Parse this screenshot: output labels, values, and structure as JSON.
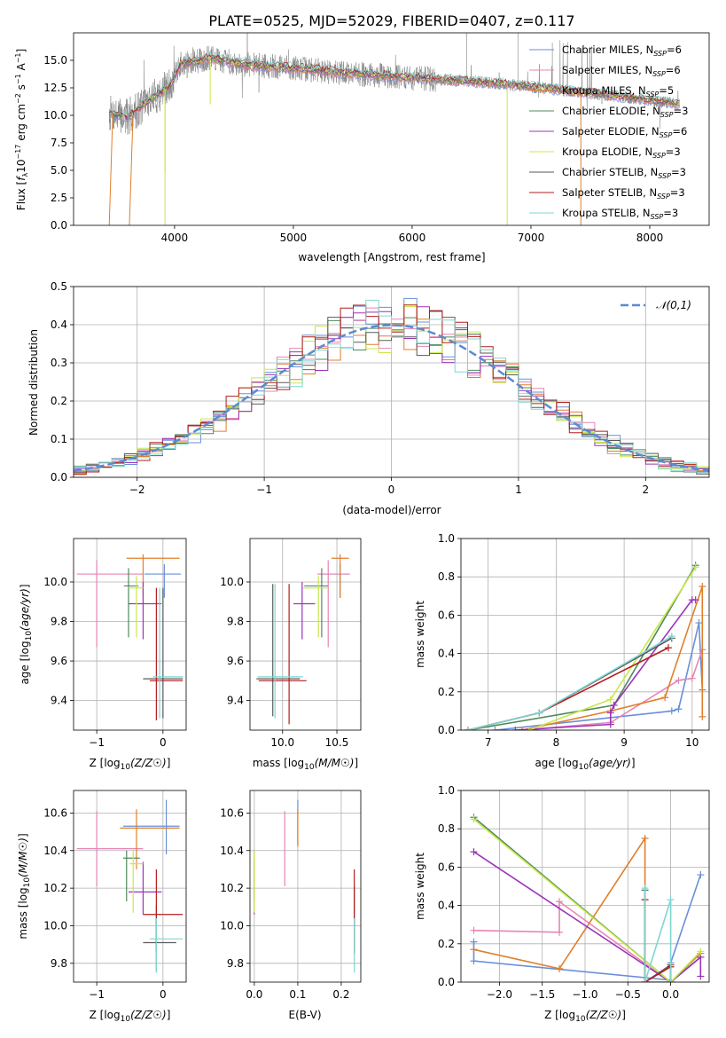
{
  "figure_title": "PLATE=0525, MJD=52029, FIBERID=0407, z=0.117",
  "series_colors": {
    "chabrier_miles": "#6a8fd8",
    "salpeter_miles": "#e884b4",
    "kroupa_miles": "#e07f2a",
    "chabrier_elodie": "#4f8a5b",
    "salpeter_elodie": "#9b34b8",
    "kroupa_elodie": "#c8e84a",
    "chabrier_stelib": "#5a5a5a",
    "salpeter_stelib": "#b31d1d",
    "kroupa_stelib": "#7fd6d2"
  },
  "legend_entries": [
    {
      "key": "chabrier_miles",
      "imf": "Chabrier",
      "lib": "MILES",
      "nssp": "6"
    },
    {
      "key": "salpeter_miles",
      "imf": "Salpeter",
      "lib": "MILES",
      "nssp": "6"
    },
    {
      "key": "kroupa_miles",
      "imf": "Kroupa",
      "lib": "MILES",
      "nssp": "5"
    },
    {
      "key": "chabrier_elodie",
      "imf": "Chabrier",
      "lib": "ELODIE",
      "nssp": "3"
    },
    {
      "key": "salpeter_elodie",
      "imf": "Salpeter",
      "lib": "ELODIE",
      "nssp": "6"
    },
    {
      "key": "kroupa_elodie",
      "imf": "Kroupa",
      "lib": "ELODIE",
      "nssp": "3"
    },
    {
      "key": "chabrier_stelib",
      "imf": "Chabrier",
      "lib": "STELIB",
      "nssp": "3"
    },
    {
      "key": "salpeter_stelib",
      "imf": "Salpeter",
      "lib": "STELIB",
      "nssp": "3"
    },
    {
      "key": "kroupa_stelib",
      "imf": "Kroupa",
      "lib": "STELIB",
      "nssp": "3"
    }
  ],
  "chart_data": [
    {
      "id": "spectrum",
      "type": "line",
      "xlabel": "wavelength [Angstrom, rest frame]",
      "ylabel": "Flux [f_λ 10^-17 erg cm^-2 s^-1 A^-1]",
      "xlim": [
        3150,
        8500
      ],
      "ylim": [
        0,
        17.5
      ],
      "xticks": [
        4000,
        5000,
        6000,
        7000,
        8000
      ],
      "yticks": [
        0.0,
        2.5,
        5.0,
        7.5,
        10.0,
        12.5,
        15.0
      ],
      "data_range": [
        3450,
        8250
      ],
      "trend": [
        [
          3450,
          10.2
        ],
        [
          3600,
          9.8
        ],
        [
          3800,
          11.5
        ],
        [
          3950,
          12.5
        ],
        [
          4050,
          14.6
        ],
        [
          4300,
          15.2
        ],
        [
          4600,
          14.6
        ],
        [
          5000,
          14.3
        ],
        [
          5500,
          13.8
        ],
        [
          6000,
          13.4
        ],
        [
          6500,
          13.1
        ],
        [
          7000,
          12.6
        ],
        [
          7500,
          12.0
        ],
        [
          8000,
          11.4
        ],
        [
          8250,
          11.0
        ]
      ],
      "model_dips": [
        [
          3920,
          4.8
        ],
        [
          4300,
          11.0
        ],
        [
          3700,
          10.5
        ]
      ],
      "model_start_edges": [
        [
          3450,
          0.0
        ],
        [
          3620,
          0.0
        ]
      ],
      "model_end_edges": [
        [
          6800,
          0.0
        ],
        [
          7420,
          0.0
        ]
      ],
      "grid": false,
      "legend": "top-right"
    },
    {
      "id": "residual_hist",
      "type": "histogram",
      "xlabel": "(data-model)/error",
      "ylabel": "Normed distribution",
      "xlim": [
        -2.5,
        2.5
      ],
      "ylim": [
        0,
        0.5
      ],
      "xticks": [
        -2,
        -1,
        0,
        1,
        2
      ],
      "yticks": [
        0.0,
        0.1,
        0.2,
        0.3,
        0.4,
        0.5
      ],
      "bin_width": 0.1,
      "reference_legend": "N(0,1)",
      "reference_color": "#5b8bd2",
      "grid": true,
      "legend": "top-right"
    },
    {
      "id": "age_vs_Z",
      "type": "errorbar",
      "xlabel": "Z [log10(Z/Z☉)]",
      "ylabel": "age  [log10(age/yr)]",
      "xlim": [
        -1.35,
        0.35
      ],
      "ylim": [
        9.25,
        10.22
      ],
      "xticks": [
        -1,
        0
      ],
      "yticks": [
        9.4,
        9.6,
        9.8,
        10.0
      ],
      "grid": true,
      "points": [
        {
          "key": "chabrier_miles",
          "x": 0.02,
          "xerr": [
            0.3,
            0.25
          ],
          "y": 10.04,
          "yerr": [
            0.12,
            0.05
          ]
        },
        {
          "key": "salpeter_miles",
          "x": -1.0,
          "xerr": [
            0.3,
            0.7
          ],
          "y": 10.04,
          "yerr": [
            0.37,
            0.07
          ]
        },
        {
          "key": "kroupa_miles",
          "x": -0.3,
          "xerr": [
            0.25,
            0.55
          ],
          "y": 10.12,
          "yerr": [
            0.2,
            0.02
          ]
        },
        {
          "key": "chabrier_elodie",
          "x": -0.52,
          "xerr": [
            0.07,
            0.15
          ],
          "y": 9.98,
          "yerr": [
            0.26,
            0.09
          ]
        },
        {
          "key": "salpeter_elodie",
          "x": -0.3,
          "xerr": [
            0.22,
            0.28
          ],
          "y": 9.89,
          "yerr": [
            0.18,
            0.11
          ]
        },
        {
          "key": "kroupa_elodie",
          "x": -0.4,
          "xerr": [
            0.12,
            0.1
          ],
          "y": 9.97,
          "yerr": [
            0.25,
            0.06
          ]
        },
        {
          "key": "chabrier_stelib",
          "x": 0.0,
          "xerr": [
            0.3,
            0.3
          ],
          "y": 9.51,
          "yerr": [
            0.2,
            0.46
          ]
        },
        {
          "key": "salpeter_stelib",
          "x": -0.1,
          "xerr": [
            0.1,
            0.4
          ],
          "y": 9.5,
          "yerr": [
            0.2,
            0.47
          ]
        },
        {
          "key": "kroupa_stelib",
          "x": -0.05,
          "xerr": [
            0.1,
            0.35
          ],
          "y": 9.52,
          "yerr": [
            0.21,
            0.45
          ]
        }
      ]
    },
    {
      "id": "age_vs_mass",
      "type": "errorbar",
      "xlabel": "mass [log10(M/M☉)]",
      "ylabel": "",
      "xlim": [
        9.7,
        10.72
      ],
      "ylim": [
        9.25,
        10.22
      ],
      "xticks": [
        10.0,
        10.5
      ],
      "yticks": [
        9.4,
        9.6,
        9.8,
        10.0
      ],
      "grid": true,
      "points": [
        {
          "key": "chabrier_miles",
          "x": 10.53,
          "xerr": [
            0.2,
            0.08
          ],
          "y": 10.04,
          "yerr": [
            0.12,
            0.05
          ]
        },
        {
          "key": "salpeter_miles",
          "x": 10.42,
          "xerr": [
            0.1,
            0.2
          ],
          "y": 10.04,
          "yerr": [
            0.37,
            0.07
          ]
        },
        {
          "key": "kroupa_miles",
          "x": 10.53,
          "xerr": [
            0.08,
            0.08
          ],
          "y": 10.12,
          "yerr": [
            0.2,
            0.02
          ]
        },
        {
          "key": "chabrier_elodie",
          "x": 10.36,
          "xerr": [
            0.16,
            0.06
          ],
          "y": 9.98,
          "yerr": [
            0.26,
            0.09
          ]
        },
        {
          "key": "salpeter_elodie",
          "x": 10.18,
          "xerr": [
            0.08,
            0.12
          ],
          "y": 9.89,
          "yerr": [
            0.18,
            0.11
          ]
        },
        {
          "key": "kroupa_elodie",
          "x": 10.33,
          "xerr": [
            0.14,
            0.1
          ],
          "y": 9.97,
          "yerr": [
            0.25,
            0.06
          ]
        },
        {
          "key": "chabrier_stelib",
          "x": 9.91,
          "xerr": [
            0.15,
            0.25
          ],
          "y": 9.51,
          "yerr": [
            0.19,
            0.48
          ]
        },
        {
          "key": "salpeter_stelib",
          "x": 10.06,
          "xerr": [
            0.28,
            0.16
          ],
          "y": 9.5,
          "yerr": [
            0.22,
            0.49
          ]
        },
        {
          "key": "kroupa_stelib",
          "x": 9.93,
          "xerr": [
            0.16,
            0.26
          ],
          "y": 9.52,
          "yerr": [
            0.21,
            0.47
          ]
        }
      ]
    },
    {
      "id": "mass_weight_vs_age",
      "type": "line",
      "xlabel": "age  [log10(age/yr)]",
      "ylabel": "mass weight",
      "xlim": [
        6.6,
        10.25
      ],
      "ylim": [
        0.0,
        1.0
      ],
      "xticks": [
        7,
        8,
        9,
        10
      ],
      "yticks": [
        0.0,
        0.2,
        0.4,
        0.6,
        0.8,
        1.0
      ],
      "grid": true,
      "series": [
        {
          "key": "chabrier_miles",
          "x": [
            7.1,
            9.7,
            9.8,
            10.1,
            10.15
          ],
          "y": [
            0.0,
            0.1,
            0.11,
            0.56,
            0.21
          ]
        },
        {
          "key": "salpeter_miles",
          "x": [
            7.5,
            8.8,
            9.8,
            10.0,
            10.15
          ],
          "y": [
            0.0,
            0.04,
            0.26,
            0.27,
            0.42
          ]
        },
        {
          "key": "kroupa_miles",
          "x": [
            7.5,
            8.8,
            9.6,
            10.15,
            10.15
          ],
          "y": [
            0.0,
            0.1,
            0.17,
            0.75,
            0.07
          ]
        },
        {
          "key": "chabrier_elodie",
          "x": [
            6.7,
            8.85,
            10.05
          ],
          "y": [
            0.0,
            0.13,
            0.86
          ]
        },
        {
          "key": "salpeter_elodie",
          "x": [
            7.4,
            8.8,
            8.8,
            8.85,
            10.0,
            10.05
          ],
          "y": [
            0.0,
            0.03,
            0.09,
            0.13,
            0.68,
            0.68
          ]
        },
        {
          "key": "kroupa_elodie",
          "x": [
            7.6,
            8.8,
            10.05
          ],
          "y": [
            0.0,
            0.16,
            0.85
          ]
        },
        {
          "key": "chabrier_stelib",
          "x": [
            6.7,
            7.75,
            9.7
          ],
          "y": [
            0.0,
            0.09,
            0.48
          ]
        },
        {
          "key": "salpeter_stelib",
          "x": [
            6.7,
            7.75,
            9.65
          ],
          "y": [
            0.0,
            0.09,
            0.43
          ]
        },
        {
          "key": "kroupa_stelib",
          "x": [
            6.7,
            7.75,
            9.7
          ],
          "y": [
            0.0,
            0.09,
            0.49
          ]
        }
      ]
    },
    {
      "id": "mass_vs_Z",
      "type": "errorbar",
      "xlabel": "Z [log10(Z/Z☉)]",
      "ylabel": "mass [log10(M/M☉)]",
      "xlim": [
        -1.35,
        0.35
      ],
      "ylim": [
        9.7,
        10.72
      ],
      "xticks": [
        -1,
        0
      ],
      "yticks": [
        9.8,
        10.0,
        10.2,
        10.4,
        10.6
      ],
      "grid": true,
      "points": [
        {
          "key": "chabrier_miles",
          "x": 0.05,
          "xerr": [
            0.65,
            0.2
          ],
          "y": 10.53,
          "yerr": [
            0.15,
            0.14
          ]
        },
        {
          "key": "salpeter_miles",
          "x": -1.0,
          "xerr": [
            0.3,
            0.7
          ],
          "y": 10.41,
          "yerr": [
            0.2,
            0.2
          ]
        },
        {
          "key": "kroupa_miles",
          "x": -0.4,
          "xerr": [
            0.25,
            0.65
          ],
          "y": 10.52,
          "yerr": [
            0.22,
            0.1
          ]
        },
        {
          "key": "chabrier_elodie",
          "x": -0.55,
          "xerr": [
            0.05,
            0.2
          ],
          "y": 10.36,
          "yerr": [
            0.23,
            0.04
          ]
        },
        {
          "key": "salpeter_elodie",
          "x": -0.3,
          "xerr": [
            0.22,
            0.28
          ],
          "y": 10.18,
          "yerr": [
            0.12,
            0.16
          ]
        },
        {
          "key": "kroupa_elodie",
          "x": -0.45,
          "xerr": [
            0.05,
            0.15
          ],
          "y": 10.33,
          "yerr": [
            0.26,
            0.07
          ]
        },
        {
          "key": "chabrier_stelib",
          "x": -0.1,
          "xerr": [
            0.2,
            0.3
          ],
          "y": 9.91,
          "yerr": [
            0.15,
            0.2
          ]
        },
        {
          "key": "salpeter_stelib",
          "x": -0.1,
          "xerr": [
            0.2,
            0.4
          ],
          "y": 10.06,
          "yerr": [
            0.2,
            0.24
          ]
        },
        {
          "key": "kroupa_stelib",
          "x": -0.1,
          "xerr": [
            0.1,
            0.4
          ],
          "y": 9.93,
          "yerr": [
            0.18,
            0.11
          ]
        }
      ]
    },
    {
      "id": "mass_vs_ebv",
      "type": "errorbar",
      "xlabel": "E(B-V)",
      "ylabel": "",
      "xlim": [
        -0.01,
        0.245
      ],
      "ylim": [
        9.7,
        10.72
      ],
      "xticks": [
        0.0,
        0.1,
        0.2
      ],
      "yticks": [
        9.8,
        10.0,
        10.2,
        10.4,
        10.6
      ],
      "grid": true,
      "points": [
        {
          "key": "chabrier_miles",
          "x": 0.1,
          "xerr": [
            0,
            0
          ],
          "y": 10.53,
          "yerr": [
            0.1,
            0.14
          ]
        },
        {
          "key": "salpeter_miles",
          "x": 0.07,
          "xerr": [
            0,
            0
          ],
          "y": 10.41,
          "yerr": [
            0.2,
            0.2
          ]
        },
        {
          "key": "kroupa_miles",
          "x": 0.1,
          "xerr": [
            0,
            0
          ],
          "y": 10.52,
          "yerr": [
            0.1,
            0.1
          ]
        },
        {
          "key": "chabrier_elodie",
          "x": 0.0,
          "xerr": [
            0,
            0
          ],
          "y": 10.36,
          "yerr": [
            0.23,
            0.04
          ]
        },
        {
          "key": "salpeter_elodie",
          "x": 0.0,
          "xerr": [
            0,
            0
          ],
          "y": 10.18,
          "yerr": [
            0.12,
            0.16
          ]
        },
        {
          "key": "kroupa_elodie",
          "x": 0.0,
          "xerr": [
            0,
            0
          ],
          "y": 10.33,
          "yerr": [
            0.26,
            0.07
          ]
        },
        {
          "key": "chabrier_stelib",
          "x": 0.23,
          "xerr": [
            0,
            0
          ],
          "y": 9.91,
          "yerr": [
            0.06,
            0.3
          ]
        },
        {
          "key": "salpeter_stelib",
          "x": 0.23,
          "xerr": [
            0,
            0
          ],
          "y": 10.06,
          "yerr": [
            0.2,
            0.24
          ]
        },
        {
          "key": "kroupa_stelib",
          "x": 0.23,
          "xerr": [
            0,
            0
          ],
          "y": 9.93,
          "yerr": [
            0.18,
            0.11
          ]
        }
      ]
    },
    {
      "id": "mass_weight_vs_Z",
      "type": "line",
      "xlabel": "Z [log10(Z/Z☉)]",
      "ylabel": "mass weight",
      "xlim": [
        -2.45,
        0.45
      ],
      "ylim": [
        0.0,
        1.0
      ],
      "xticks": [
        -2.0,
        -1.5,
        -1.0,
        -0.5,
        0.0
      ],
      "yticks": [
        0.0,
        0.2,
        0.4,
        0.6,
        0.8,
        1.0
      ],
      "grid": true,
      "series": [
        {
          "key": "chabrier_miles",
          "x": [
            -2.3,
            -2.3,
            0.0,
            0.0,
            0.35
          ],
          "y": [
            0.21,
            0.11,
            0.01,
            0.1,
            0.56
          ]
        },
        {
          "key": "salpeter_miles",
          "x": [
            -2.3,
            -1.3,
            -1.3,
            0.0
          ],
          "y": [
            0.27,
            0.26,
            0.42,
            0.0
          ]
        },
        {
          "key": "kroupa_miles",
          "x": [
            -2.3,
            -1.3,
            -0.3,
            -0.3,
            0.0,
            0.35
          ],
          "y": [
            0.17,
            0.07,
            0.75,
            0.0,
            0.0,
            0.15
          ]
        },
        {
          "key": "chabrier_elodie",
          "x": [
            -2.3,
            0.0,
            0.35
          ],
          "y": [
            0.86,
            0.0,
            0.13
          ]
        },
        {
          "key": "salpeter_elodie",
          "x": [
            -2.3,
            0.0,
            0.35,
            0.35
          ],
          "y": [
            0.68,
            0.0,
            0.13,
            0.03
          ]
        },
        {
          "key": "kroupa_elodie",
          "x": [
            -2.3,
            0.0,
            0.35
          ],
          "y": [
            0.85,
            0.0,
            0.16
          ]
        },
        {
          "key": "chabrier_stelib",
          "x": [
            -0.3,
            -0.3,
            0.0,
            0.0
          ],
          "y": [
            0.48,
            0.0,
            0.09,
            0.0
          ]
        },
        {
          "key": "salpeter_stelib",
          "x": [
            -0.3,
            -0.3,
            0.0
          ],
          "y": [
            0.43,
            0.0,
            0.08
          ]
        },
        {
          "key": "kroupa_stelib",
          "x": [
            -0.3,
            -0.3,
            0.0,
            0.0
          ],
          "y": [
            0.49,
            0.0,
            0.43,
            0.0
          ]
        }
      ]
    }
  ]
}
